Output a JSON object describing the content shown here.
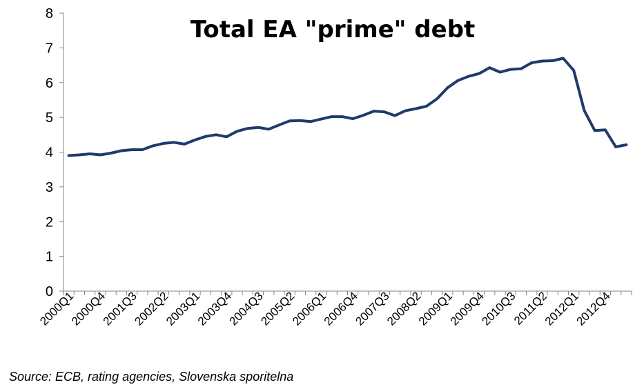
{
  "chart_data": {
    "type": "line",
    "title": "Total EA \"prime\" debt",
    "xlabel": "",
    "ylabel": "",
    "ylim": [
      0,
      8
    ],
    "yticks": [
      0,
      1,
      2,
      3,
      4,
      5,
      6,
      7,
      8
    ],
    "grid": false,
    "legend": "none",
    "line_color": "#1f3a6b",
    "x": [
      "2000Q1",
      "2000Q2",
      "2000Q3",
      "2000Q4",
      "2001Q1",
      "2001Q2",
      "2001Q3",
      "2001Q4",
      "2002Q1",
      "2002Q2",
      "2002Q3",
      "2002Q4",
      "2003Q1",
      "2003Q2",
      "2003Q3",
      "2003Q4",
      "2004Q1",
      "2004Q2",
      "2004Q3",
      "2004Q4",
      "2005Q1",
      "2005Q2",
      "2005Q3",
      "2005Q4",
      "2006Q1",
      "2006Q2",
      "2006Q3",
      "2006Q4",
      "2007Q1",
      "2007Q2",
      "2007Q3",
      "2007Q4",
      "2008Q1",
      "2008Q2",
      "2008Q3",
      "2008Q4",
      "2009Q1",
      "2009Q2",
      "2009Q3",
      "2009Q4",
      "2010Q1",
      "2010Q2",
      "2010Q3",
      "2010Q4",
      "2011Q1",
      "2011Q2",
      "2011Q3",
      "2011Q4",
      "2012Q1",
      "2012Q2",
      "2012Q3",
      "2012Q4",
      "2013Q1",
      "2013Q2"
    ],
    "x_tick_labels": [
      "2000Q1",
      "2000Q4",
      "2001Q3",
      "2002Q2",
      "2003Q1",
      "2003Q4",
      "2004Q3",
      "2005Q2",
      "2006Q1",
      "2006Q4",
      "2007Q3",
      "2008Q2",
      "2009Q1",
      "2009Q4",
      "2010Q3",
      "2011Q2",
      "2012Q1",
      "2012Q4"
    ],
    "series": [
      {
        "values": [
          3.9,
          3.92,
          3.95,
          3.92,
          3.97,
          4.04,
          4.07,
          4.07,
          4.18,
          4.25,
          4.28,
          4.23,
          4.35,
          4.45,
          4.5,
          4.44,
          4.6,
          4.68,
          4.71,
          4.66,
          4.78,
          4.9,
          4.91,
          4.88,
          4.95,
          5.02,
          5.02,
          4.96,
          5.06,
          5.18,
          5.16,
          5.05,
          5.19,
          5.25,
          5.32,
          5.53,
          5.85,
          6.06,
          6.18,
          6.26,
          6.43,
          6.3,
          6.38,
          6.4,
          6.57,
          6.62,
          6.63,
          6.7,
          6.35,
          5.2,
          4.62,
          4.64,
          4.15,
          4.21
        ]
      }
    ]
  },
  "source": "Source: ECB, rating agencies, Slovenska sporitelna"
}
